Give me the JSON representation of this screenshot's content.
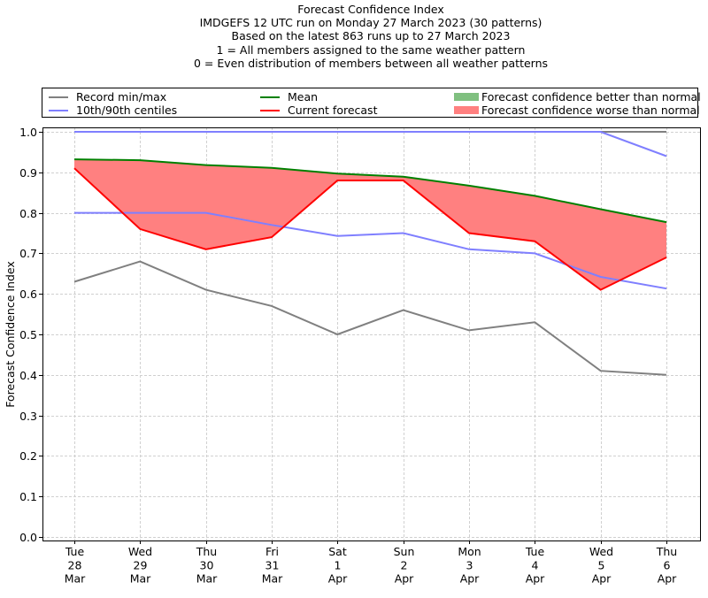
{
  "titles": [
    "Forecast Confidence Index",
    "IMDGEFS 12 UTC run on Monday 27 March 2023 (30 patterns)",
    "Based on the latest 863 runs up to 27 March 2023",
    "1 = All members assigned to the same weather pattern",
    "0 = Even distribution of members between all weather patterns"
  ],
  "legend": {
    "items": [
      {
        "label": "Record min/max",
        "kind": "line",
        "color": "#808080"
      },
      {
        "label": "10th/90th centiles",
        "kind": "line",
        "color": "#7f7fff"
      },
      {
        "label": "Mean",
        "kind": "line",
        "color": "#008000"
      },
      {
        "label": "Current forecast",
        "kind": "line",
        "color": "#ff0000"
      },
      {
        "label": "Forecast confidence better than normal",
        "kind": "patch",
        "color": "#80c080"
      },
      {
        "label": "Forecast confidence worse than normal",
        "kind": "patch",
        "color": "#ff8080"
      }
    ]
  },
  "chart_data": {
    "type": "line",
    "title": "Forecast Confidence Index",
    "xlabel": "",
    "ylabel": "Forecast Confidence Index",
    "ylim": [
      0.0,
      1.0
    ],
    "yticks": [
      "0.0",
      "0.1",
      "0.2",
      "0.3",
      "0.4",
      "0.5",
      "0.6",
      "0.7",
      "0.8",
      "0.9",
      "1.0"
    ],
    "grid": true,
    "legend_position": "top",
    "categories": [
      [
        "Tue",
        "28",
        "Mar"
      ],
      [
        "Wed",
        "29",
        "Mar"
      ],
      [
        "Thu",
        "30",
        "Mar"
      ],
      [
        "Fri",
        "31",
        "Mar"
      ],
      [
        "Sat",
        "1",
        "Apr"
      ],
      [
        "Sun",
        "2",
        "Apr"
      ],
      [
        "Mon",
        "3",
        "Apr"
      ],
      [
        "Tue",
        "4",
        "Apr"
      ],
      [
        "Wed",
        "5",
        "Apr"
      ],
      [
        "Thu",
        "6",
        "Apr"
      ]
    ],
    "series": [
      {
        "name": "Record max",
        "color": "#808080",
        "values": [
          1.0,
          1.0,
          1.0,
          1.0,
          1.0,
          1.0,
          1.0,
          1.0,
          1.0,
          1.0
        ]
      },
      {
        "name": "Record min",
        "color": "#808080",
        "values": [
          0.63,
          0.68,
          0.61,
          0.57,
          0.5,
          0.56,
          0.51,
          0.53,
          0.41,
          0.4
        ]
      },
      {
        "name": "90th centile",
        "color": "#7f7fff",
        "values": [
          1.0,
          1.0,
          1.0,
          1.0,
          1.0,
          1.0,
          1.0,
          1.0,
          1.0,
          0.94
        ]
      },
      {
        "name": "10th centile",
        "color": "#7f7fff",
        "values": [
          0.8,
          0.8,
          0.8,
          0.77,
          0.743,
          0.75,
          0.71,
          0.7,
          0.642,
          0.613
        ]
      },
      {
        "name": "Mean",
        "color": "#008000",
        "values": [
          0.932,
          0.93,
          0.918,
          0.911,
          0.897,
          0.889,
          0.867,
          0.842,
          0.809,
          0.777
        ]
      },
      {
        "name": "Current forecast",
        "color": "#ff0000",
        "values": [
          0.91,
          0.76,
          0.71,
          0.74,
          0.88,
          0.88,
          0.75,
          0.73,
          0.61,
          0.69
        ]
      }
    ],
    "fill": {
      "name": "Forecast confidence worse than normal",
      "between": [
        "Mean",
        "Current forecast"
      ],
      "color": "#ff8080"
    }
  }
}
